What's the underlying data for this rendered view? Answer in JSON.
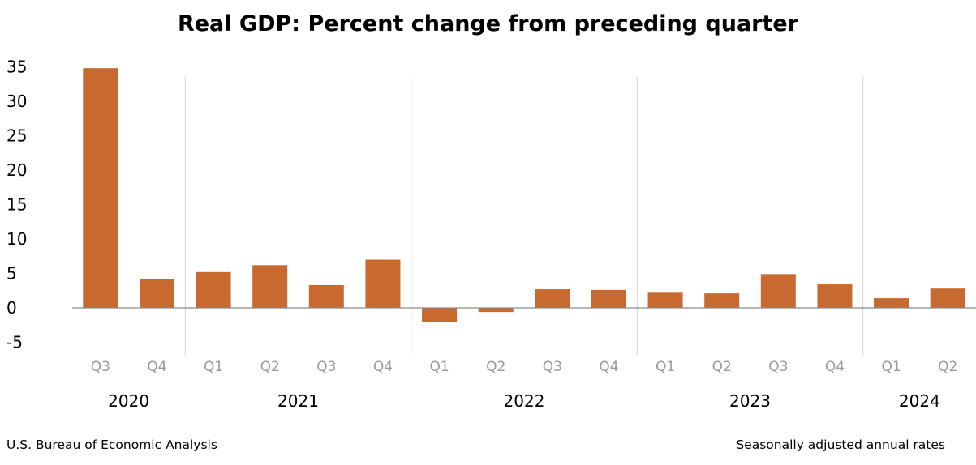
{
  "chart_data": {
    "type": "bar",
    "title": "Real GDP: Percent change from preceding quarter",
    "categories": [
      "Q3",
      "Q4",
      "Q1",
      "Q2",
      "Q3",
      "Q4",
      "Q1",
      "Q2",
      "Q3",
      "Q4",
      "Q1",
      "Q2",
      "Q3",
      "Q4",
      "Q1",
      "Q2"
    ],
    "year_groups": [
      {
        "label": "2020",
        "count": 2
      },
      {
        "label": "2021",
        "count": 4
      },
      {
        "label": "2022",
        "count": 4
      },
      {
        "label": "2023",
        "count": 4
      },
      {
        "label": "2024",
        "count": 2
      }
    ],
    "series": [
      {
        "values": [
          34.8,
          4.2,
          5.2,
          6.2,
          3.3,
          7.0,
          -2.0,
          -0.6,
          2.7,
          2.6,
          2.2,
          2.1,
          4.9,
          3.4,
          1.4,
          2.8
        ]
      }
    ],
    "ylim": [
      -5,
      35
    ],
    "yticks": [
      -5,
      0,
      5,
      10,
      15,
      20,
      25,
      30,
      35
    ],
    "ytick_labels": [
      "-5",
      "0",
      "5",
      "10",
      "15",
      "20",
      "25",
      "30",
      "35"
    ],
    "xlabel": "",
    "ylabel": "",
    "grid": false,
    "colors": {
      "bar": "#C8692F",
      "baseline": "#8c8c8c",
      "separator": "#d4d4d4",
      "quarter_label": "#9a9a9a"
    }
  },
  "footer": {
    "source": "U.S. Bureau of Economic Analysis",
    "note": "Seasonally adjusted annual rates"
  }
}
